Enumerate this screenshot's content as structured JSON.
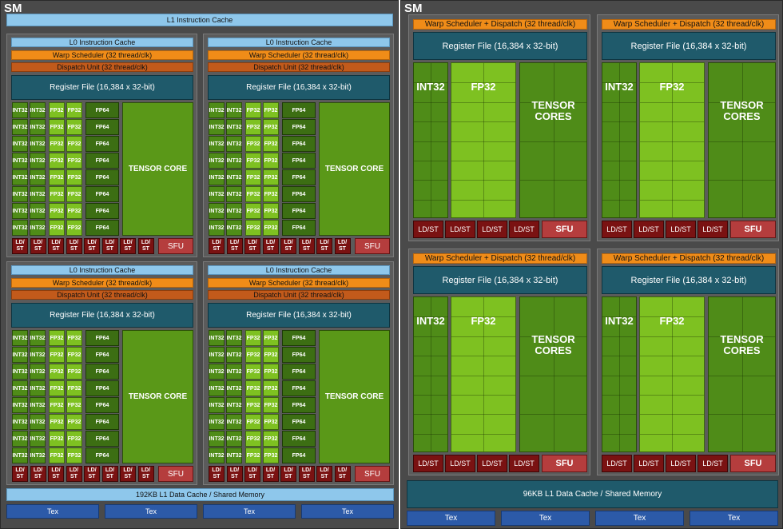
{
  "left_sm": {
    "title": "SM",
    "l1_instruction_cache": "L1 Instruction Cache",
    "partition": {
      "l0_cache": "L0 Instruction Cache",
      "warp_scheduler": "Warp Scheduler (32 thread/clk)",
      "dispatch_unit": "Dispatch Unit (32 thread/clk)",
      "register_file": "Register File (16,384 x 32-bit)",
      "int32_label": "INT32",
      "fp32_label": "FP32",
      "fp64_label": "FP64",
      "tensor_core": "TENSOR CORE",
      "ldst_line1": "LD/",
      "ldst_line2": "ST",
      "sfu": "SFU"
    },
    "l1_data_cache": "192KB L1 Data Cache / Shared Memory",
    "tex_units": [
      "Tex",
      "Tex",
      "Tex",
      "Tex"
    ]
  },
  "right_sm": {
    "title": "SM",
    "partition": {
      "warp_dispatch": "Warp Scheduler + Dispatch (32 thread/clk)",
      "register_file": "Register File (16,384 x 32-bit)",
      "int32": "INT32",
      "fp32": "FP32",
      "tensor_line1": "TENSOR",
      "tensor_line2": "CORES",
      "ldst": "LD/ST",
      "sfu": "SFU"
    },
    "l1_data_cache": "96KB L1 Data Cache / Shared Memory",
    "tex_units": [
      "Tex",
      "Tex",
      "Tex",
      "Tex"
    ]
  },
  "colors": {
    "cache": "#8ec7eb",
    "warp": "#f08c18",
    "dispatch": "#c25a1b",
    "register_file": "#1f5a6b",
    "int32": "#4f8c18",
    "fp32": "#7ec121",
    "fp64": "#3c6e13",
    "ldst": "#7a1212",
    "sfu": "#b53d3d",
    "tex": "#2c5aa8"
  }
}
